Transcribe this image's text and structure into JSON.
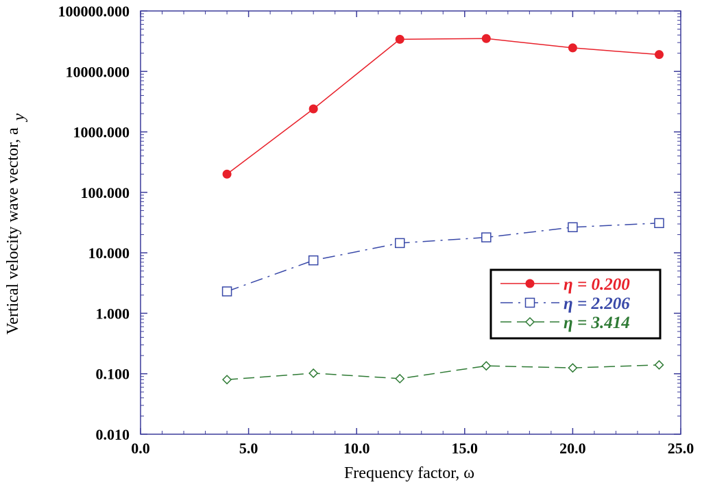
{
  "chart_data": {
    "type": "line",
    "yscale": "log",
    "xlabel": "Frequency factor, ω",
    "ylabel_main": "Vertical velocity wave vector, a",
    "ylabel_sub": "y",
    "xlim": [
      0,
      25
    ],
    "ylim": [
      0.01,
      100000
    ],
    "x_ticks": [
      0,
      5,
      10,
      15,
      20,
      25
    ],
    "x_tick_labels": [
      "0.0",
      "5.0",
      "10.0",
      "15.0",
      "20.0",
      "25.0"
    ],
    "y_ticks": [
      0.01,
      0.1,
      1,
      10,
      100,
      1000,
      10000,
      100000
    ],
    "y_tick_labels": [
      "0.010",
      "0.100",
      "1.000",
      "10.000",
      "100.000",
      "1000.000",
      "10000.000",
      "100000.000"
    ],
    "x": [
      4,
      8,
      12,
      16,
      20,
      24
    ],
    "series": [
      {
        "name": "η = 0.200",
        "color": "#e8202a",
        "marker": "filled-circle",
        "dash": "solid",
        "values": [
          200,
          2400,
          34000,
          35000,
          24500,
          19000
        ]
      },
      {
        "name": "η = 2.206",
        "color": "#3848a8",
        "marker": "open-square",
        "dash": "dash-dot",
        "values": [
          2.3,
          7.5,
          14.5,
          18,
          26.5,
          31
        ]
      },
      {
        "name": "η = 3.414",
        "color": "#2e7a34",
        "marker": "open-diamond",
        "dash": "dashed",
        "values": [
          0.08,
          0.102,
          0.083,
          0.135,
          0.125,
          0.14
        ]
      }
    ],
    "legend_position": "right-middle"
  }
}
